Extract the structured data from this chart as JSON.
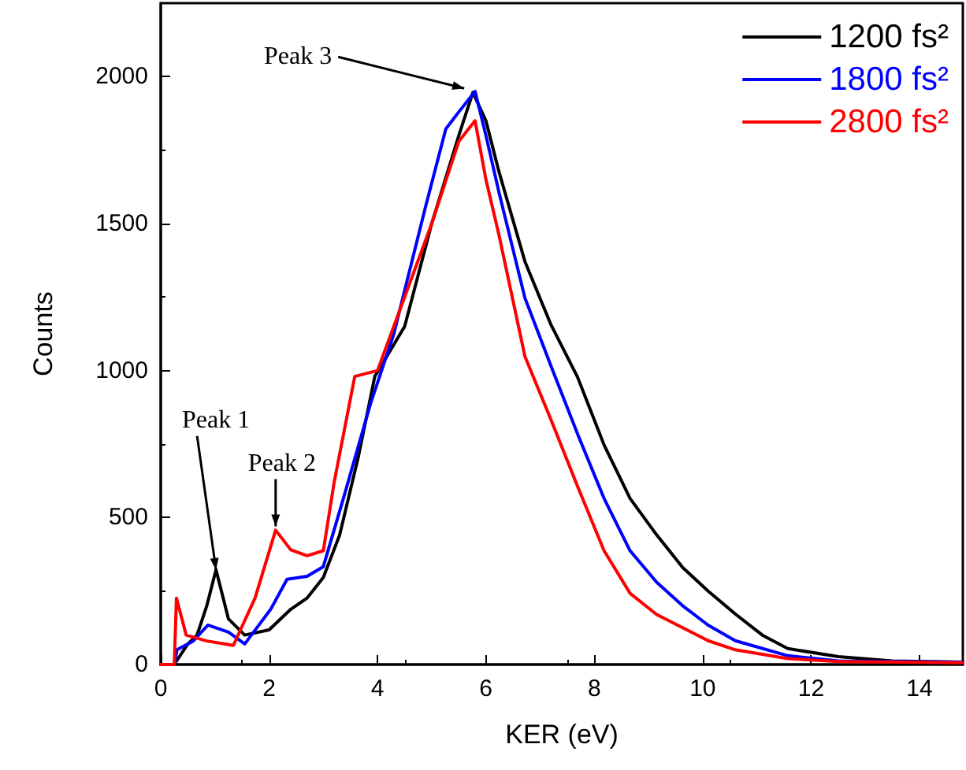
{
  "chart_data": {
    "type": "line",
    "xlabel": "KER (eV)",
    "ylabel": "Counts",
    "xlim": [
      0,
      14.8
    ],
    "xticks": [
      0,
      2,
      4,
      6,
      8,
      10,
      12,
      14
    ],
    "ylim": [
      0,
      2250
    ],
    "yticks": [
      0,
      500,
      1000,
      1500,
      2000
    ],
    "grid": false,
    "legend": "top right",
    "marker": "none",
    "line_style": "solid",
    "series": [
      {
        "name": "1200 fs²",
        "color": "#000000",
        "x": [
          0,
          0.25,
          0.5,
          0.67,
          0.85,
          1.02,
          1.25,
          1.55,
          2.0,
          2.4,
          2.7,
          3.0,
          3.3,
          3.65,
          3.95,
          4.5,
          5.0,
          5.5,
          5.76,
          6.0,
          6.24,
          6.72,
          7.2,
          7.69,
          8.18,
          8.66,
          9.15,
          9.63,
          10.1,
          10.6,
          11.1,
          11.57,
          12.5,
          13.5,
          14.8
        ],
        "values": [
          0,
          0,
          70,
          100,
          200,
          322,
          155,
          100,
          118,
          188,
          226,
          296,
          440,
          710,
          980,
          1150,
          1500,
          1800,
          1946,
          1850,
          1677,
          1371,
          1156,
          978,
          747,
          565,
          441,
          330,
          250,
          172,
          100,
          54,
          27,
          12,
          8
        ]
      },
      {
        "name": "1800 fs²",
        "color": "#0000ff",
        "x": [
          0,
          0.25,
          0.3,
          0.6,
          0.87,
          1.25,
          1.55,
          2.03,
          2.33,
          2.7,
          3.0,
          3.37,
          3.87,
          4.3,
          4.88,
          5.26,
          5.5,
          5.8,
          6.0,
          6.24,
          6.72,
          7.2,
          7.7,
          8.18,
          8.66,
          9.15,
          9.63,
          10.1,
          10.6,
          11.57,
          12.5,
          14.8
        ],
        "values": [
          0,
          0,
          50,
          80,
          134,
          110,
          70,
          188,
          290,
          300,
          333,
          565,
          887,
          1124,
          1553,
          1822,
          1880,
          1950,
          1800,
          1607,
          1247,
          1016,
          780,
          565,
          387,
          280,
          200,
          134,
          81,
          30,
          12,
          8
        ]
      },
      {
        "name": "2800 fs²",
        "color": "#ff0000",
        "x": [
          0,
          0.25,
          0.29,
          0.47,
          0.85,
          1.34,
          1.74,
          2.12,
          2.4,
          2.7,
          3.0,
          3.2,
          3.58,
          4.0,
          4.5,
          5.0,
          5.5,
          5.8,
          6.0,
          6.24,
          6.72,
          7.2,
          7.7,
          8.18,
          8.66,
          9.15,
          10.1,
          10.6,
          11.57,
          12.5,
          14.8
        ],
        "values": [
          0,
          0,
          226,
          100,
          80,
          65,
          226,
          457,
          390,
          370,
          387,
          620,
          980,
          1000,
          1250,
          1500,
          1780,
          1850,
          1650,
          1462,
          1048,
          833,
          602,
          387,
          242,
          170,
          81,
          50,
          20,
          10,
          6
        ]
      }
    ],
    "annotations": [
      {
        "text": "Peak 1",
        "x": 1.02,
        "y": 322
      },
      {
        "text": "Peak 2",
        "x": 2.12,
        "y": 470
      },
      {
        "text": "Peak 3",
        "x": 5.6,
        "y": 1960
      }
    ]
  }
}
